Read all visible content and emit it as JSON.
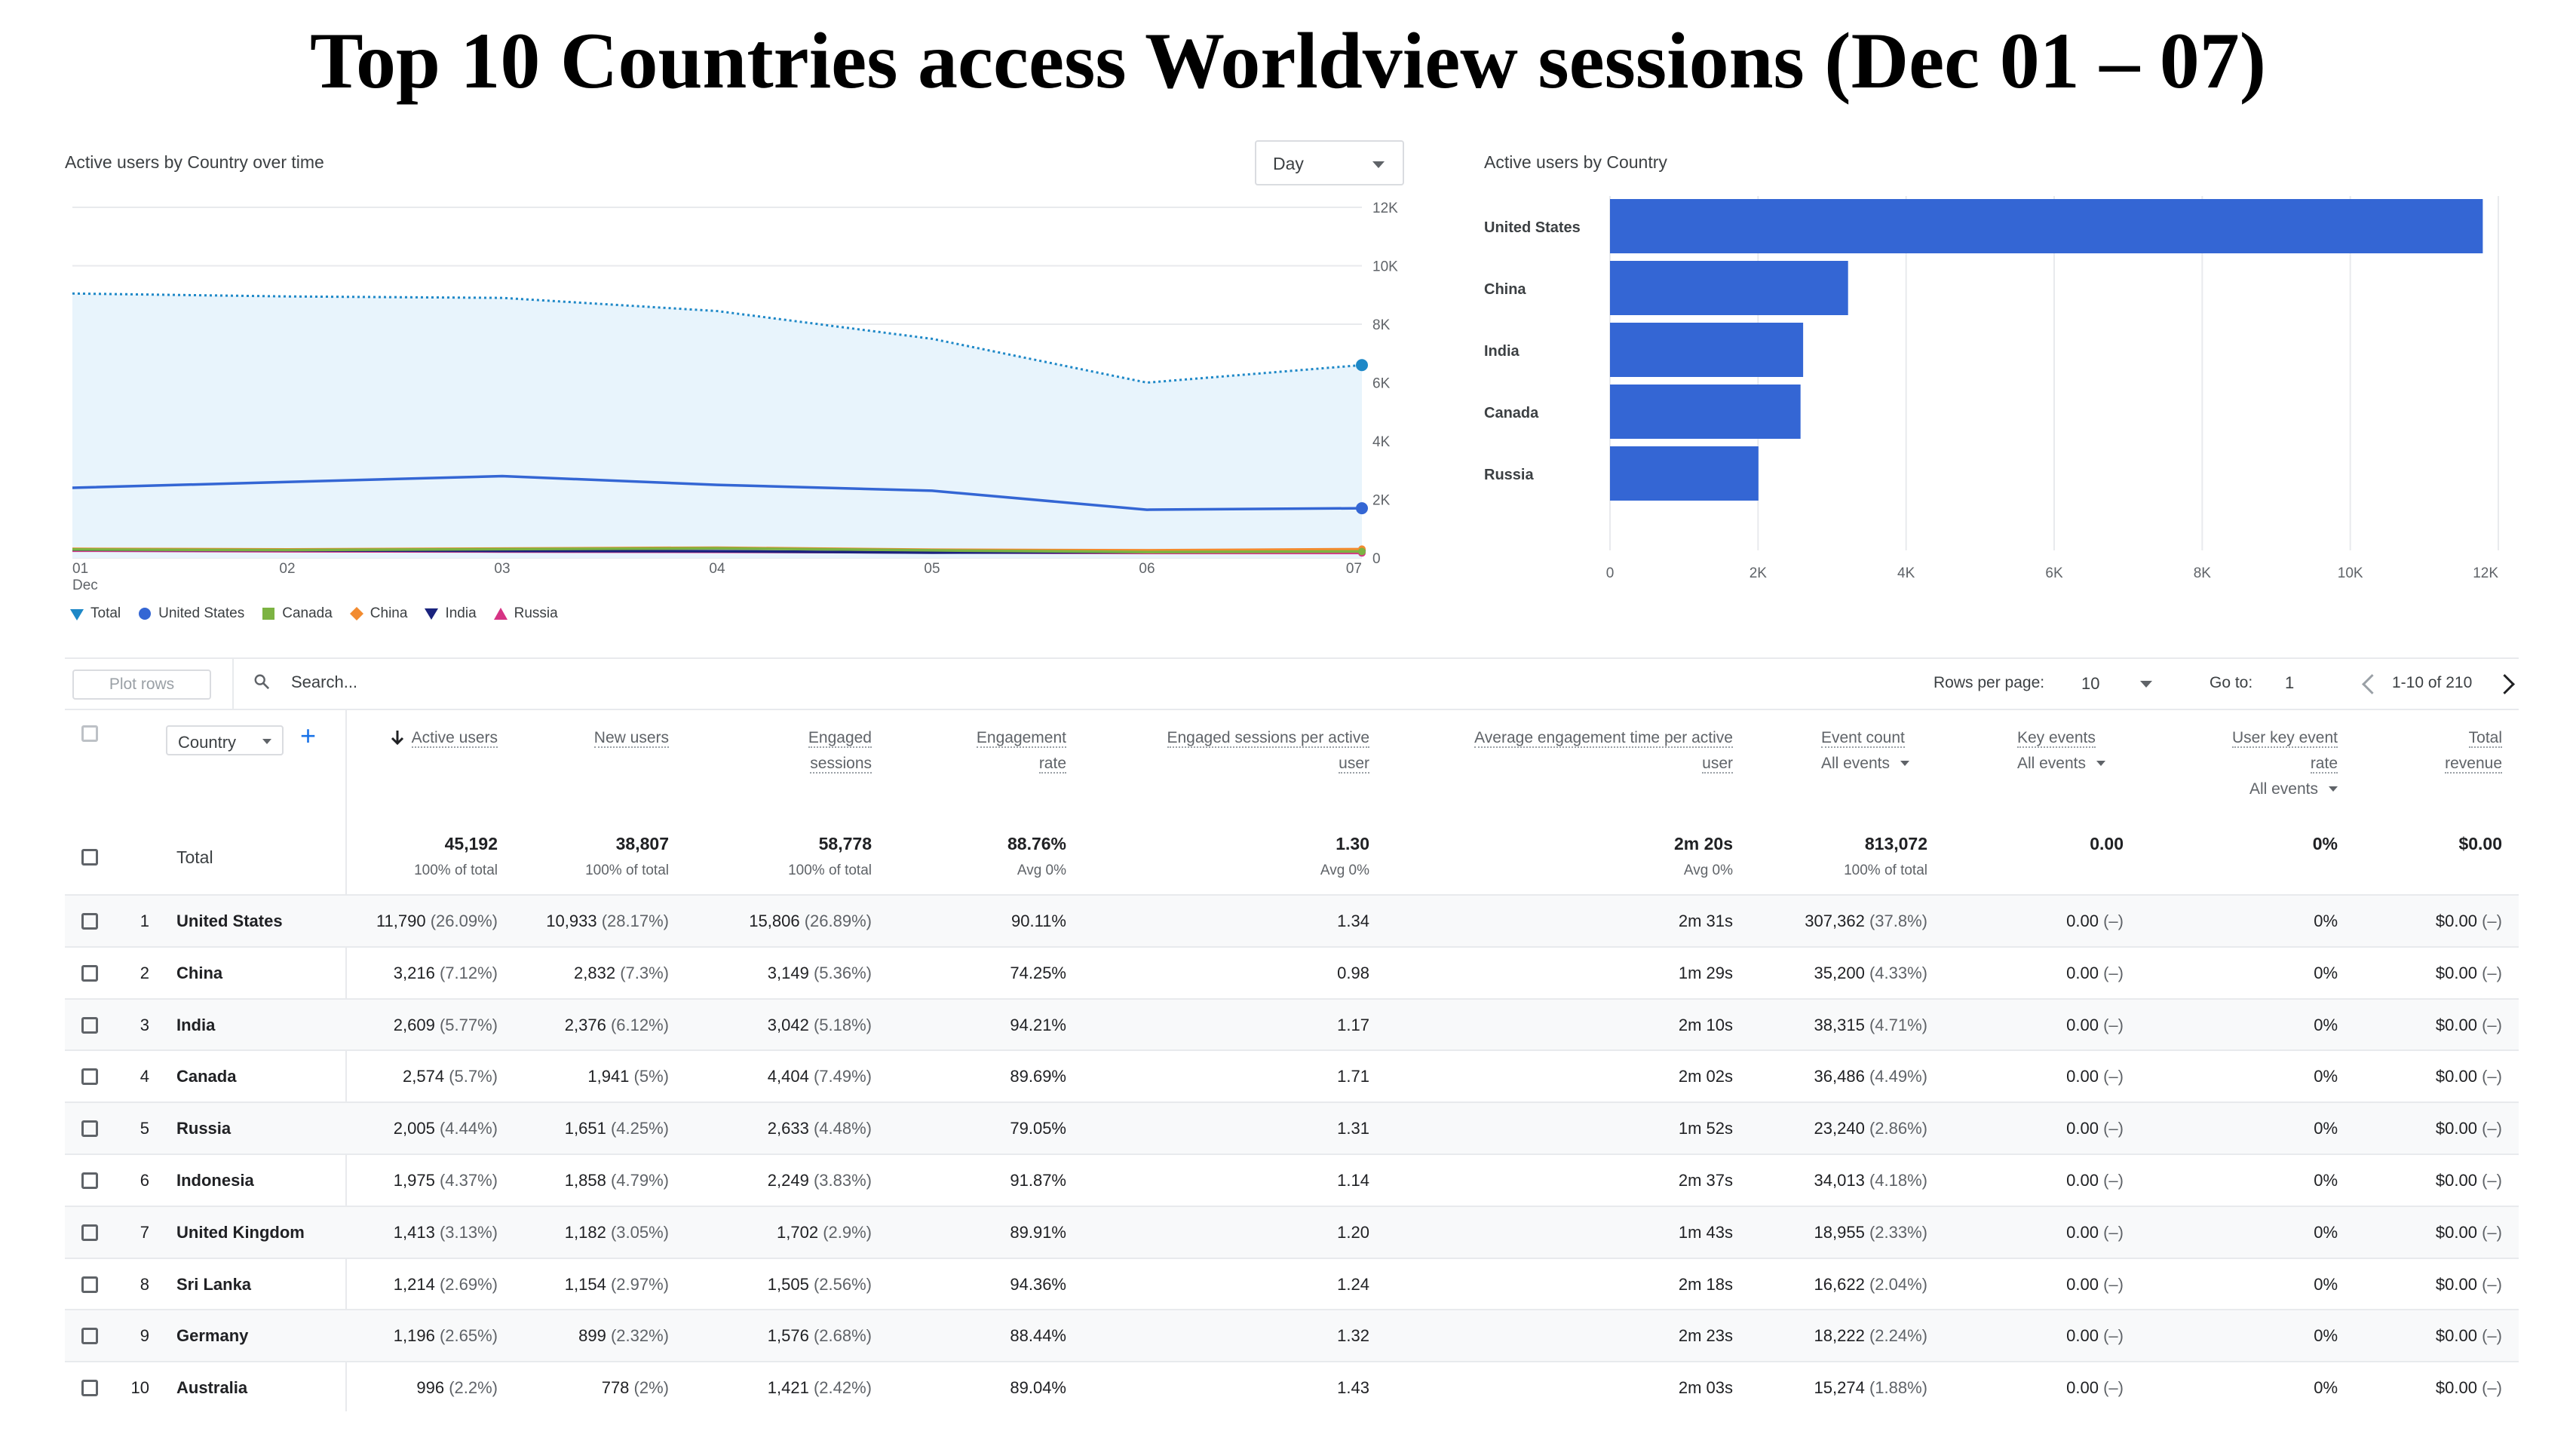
{
  "page_title": "Top 10 Countries access Worldview sessions (Dec 01 – 07)",
  "line_chart": {
    "title": "Active users by Country over time",
    "granularity": "Day",
    "x_ticks": [
      "01",
      "02",
      "03",
      "04",
      "05",
      "06",
      "07"
    ],
    "x_month": "Dec",
    "y_ticks": [
      "0",
      "2K",
      "4K",
      "6K",
      "8K",
      "10K",
      "12K"
    ],
    "legend": [
      "Total",
      "United States",
      "Canada",
      "China",
      "India",
      "Russia"
    ]
  },
  "bar_chart": {
    "title": "Active users by Country",
    "x_ticks": [
      "0",
      "2K",
      "4K",
      "6K",
      "8K",
      "10K",
      "12K"
    ]
  },
  "chart_data": [
    {
      "type": "line",
      "title": "Active users by Country over time",
      "x": [
        "01",
        "02",
        "03",
        "04",
        "05",
        "06",
        "07"
      ],
      "ylim": [
        0,
        12000
      ],
      "series": [
        {
          "name": "Total",
          "color": "#1e88c7",
          "values": [
            9050,
            8950,
            8900,
            8450,
            7500,
            6000,
            6600
          ]
        },
        {
          "name": "United States",
          "color": "#3466d4",
          "values": [
            2400,
            2600,
            2800,
            2500,
            2300,
            1650,
            1700
          ]
        },
        {
          "name": "Canada",
          "color": "#7cb342",
          "values": [
            290,
            270,
            300,
            330,
            260,
            200,
            220
          ]
        },
        {
          "name": "China",
          "color": "#f28b30",
          "values": [
            310,
            290,
            320,
            350,
            280,
            260,
            300
          ]
        },
        {
          "name": "India",
          "color": "#1a237e",
          "values": [
            280,
            260,
            240,
            230,
            180,
            200,
            250
          ]
        },
        {
          "name": "Russia",
          "color": "#d63384",
          "values": [
            250,
            230,
            220,
            210,
            190,
            170,
            170
          ]
        }
      ]
    },
    {
      "type": "bar",
      "title": "Active users by Country",
      "orientation": "horizontal",
      "categories": [
        "United States",
        "China",
        "India",
        "Canada",
        "Russia"
      ],
      "values": [
        11790,
        3216,
        2609,
        2574,
        2005
      ],
      "xlim": [
        0,
        12000
      ],
      "color": "#3466d4"
    }
  ],
  "toolbar": {
    "plot_rows": "Plot rows",
    "search_placeholder": "Search...",
    "rows_per_page_label": "Rows per page:",
    "rows_per_page": "10",
    "goto_label": "Go to:",
    "goto_value": "1",
    "range": "1-10 of 210"
  },
  "table": {
    "dimension_label": "Country",
    "headers": {
      "active_users": "Active users",
      "new_users": "New users",
      "engaged_sessions_1": "Engaged",
      "engaged_sessions_2": "sessions",
      "engagement_rate_1": "Engagement",
      "engagement_rate_2": "rate",
      "esp_1": "Engaged sessions per active",
      "esp_2": "user",
      "aet_1": "Average engagement time per active",
      "aet_2": "user",
      "event_count": "Event count",
      "event_count_sub": "All events",
      "key_events": "Key events",
      "key_events_sub": "All events",
      "ukr_1": "User key event",
      "ukr_2": "rate",
      "ukr_sub": "All events",
      "rev_1": "Total",
      "rev_2": "revenue"
    },
    "total": {
      "label": "Total",
      "active_users": "45,192",
      "active_users_sub": "100% of total",
      "new_users": "38,807",
      "new_users_sub": "100% of total",
      "engaged_sessions": "58,778",
      "engaged_sessions_sub": "100% of total",
      "engagement_rate": "88.76%",
      "engagement_rate_sub": "Avg 0%",
      "esp": "1.30",
      "esp_sub": "Avg 0%",
      "aet": "2m 20s",
      "aet_sub": "Avg 0%",
      "event_count": "813,072",
      "event_count_sub": "100% of total",
      "key_events": "0.00",
      "ukr": "0%",
      "revenue": "$0.00"
    },
    "rows": [
      {
        "n": "1",
        "country": "United States",
        "au": "11,790",
        "aup": "(26.09%)",
        "nu": "10,933",
        "nup": "(28.17%)",
        "es": "15,806",
        "esp": "(26.89%)",
        "er": "90.11%",
        "spu": "1.34",
        "aet": "2m 31s",
        "ec": "307,362",
        "ecp": "(37.8%)",
        "ke": "0.00",
        "kep": "(–)",
        "ukr": "0%",
        "rev": "$0.00",
        "revp": "(–)"
      },
      {
        "n": "2",
        "country": "China",
        "au": "3,216",
        "aup": "(7.12%)",
        "nu": "2,832",
        "nup": "(7.3%)",
        "es": "3,149",
        "esp": "(5.36%)",
        "er": "74.25%",
        "spu": "0.98",
        "aet": "1m 29s",
        "ec": "35,200",
        "ecp": "(4.33%)",
        "ke": "0.00",
        "kep": "(–)",
        "ukr": "0%",
        "rev": "$0.00",
        "revp": "(–)"
      },
      {
        "n": "3",
        "country": "India",
        "au": "2,609",
        "aup": "(5.77%)",
        "nu": "2,376",
        "nup": "(6.12%)",
        "es": "3,042",
        "esp": "(5.18%)",
        "er": "94.21%",
        "spu": "1.17",
        "aet": "2m 10s",
        "ec": "38,315",
        "ecp": "(4.71%)",
        "ke": "0.00",
        "kep": "(–)",
        "ukr": "0%",
        "rev": "$0.00",
        "revp": "(–)"
      },
      {
        "n": "4",
        "country": "Canada",
        "au": "2,574",
        "aup": "(5.7%)",
        "nu": "1,941",
        "nup": "(5%)",
        "es": "4,404",
        "esp": "(7.49%)",
        "er": "89.69%",
        "spu": "1.71",
        "aet": "2m 02s",
        "ec": "36,486",
        "ecp": "(4.49%)",
        "ke": "0.00",
        "kep": "(–)",
        "ukr": "0%",
        "rev": "$0.00",
        "revp": "(–)"
      },
      {
        "n": "5",
        "country": "Russia",
        "au": "2,005",
        "aup": "(4.44%)",
        "nu": "1,651",
        "nup": "(4.25%)",
        "es": "2,633",
        "esp": "(4.48%)",
        "er": "79.05%",
        "spu": "1.31",
        "aet": "1m 52s",
        "ec": "23,240",
        "ecp": "(2.86%)",
        "ke": "0.00",
        "kep": "(–)",
        "ukr": "0%",
        "rev": "$0.00",
        "revp": "(–)"
      },
      {
        "n": "6",
        "country": "Indonesia",
        "au": "1,975",
        "aup": "(4.37%)",
        "nu": "1,858",
        "nup": "(4.79%)",
        "es": "2,249",
        "esp": "(3.83%)",
        "er": "91.87%",
        "spu": "1.14",
        "aet": "2m 37s",
        "ec": "34,013",
        "ecp": "(4.18%)",
        "ke": "0.00",
        "kep": "(–)",
        "ukr": "0%",
        "rev": "$0.00",
        "revp": "(–)"
      },
      {
        "n": "7",
        "country": "United Kingdom",
        "au": "1,413",
        "aup": "(3.13%)",
        "nu": "1,182",
        "nup": "(3.05%)",
        "es": "1,702",
        "esp": "(2.9%)",
        "er": "89.91%",
        "spu": "1.20",
        "aet": "1m 43s",
        "ec": "18,955",
        "ecp": "(2.33%)",
        "ke": "0.00",
        "kep": "(–)",
        "ukr": "0%",
        "rev": "$0.00",
        "revp": "(–)"
      },
      {
        "n": "8",
        "country": "Sri Lanka",
        "au": "1,214",
        "aup": "(2.69%)",
        "nu": "1,154",
        "nup": "(2.97%)",
        "es": "1,505",
        "esp": "(2.56%)",
        "er": "94.36%",
        "spu": "1.24",
        "aet": "2m 18s",
        "ec": "16,622",
        "ecp": "(2.04%)",
        "ke": "0.00",
        "kep": "(–)",
        "ukr": "0%",
        "rev": "$0.00",
        "revp": "(–)"
      },
      {
        "n": "9",
        "country": "Germany",
        "au": "1,196",
        "aup": "(2.65%)",
        "nu": "899",
        "nup": "(2.32%)",
        "es": "1,576",
        "esp": "(2.68%)",
        "er": "88.44%",
        "spu": "1.32",
        "aet": "2m 23s",
        "ec": "18,222",
        "ecp": "(2.24%)",
        "ke": "0.00",
        "kep": "(–)",
        "ukr": "0%",
        "rev": "$0.00",
        "revp": "(–)"
      },
      {
        "n": "10",
        "country": "Australia",
        "au": "996",
        "aup": "(2.2%)",
        "nu": "778",
        "nup": "(2%)",
        "es": "1,421",
        "esp": "(2.42%)",
        "er": "89.04%",
        "spu": "1.43",
        "aet": "2m 03s",
        "ec": "15,274",
        "ecp": "(1.88%)",
        "ke": "0.00",
        "kep": "(–)",
        "ukr": "0%",
        "rev": "$0.00",
        "revp": "(–)"
      }
    ]
  }
}
